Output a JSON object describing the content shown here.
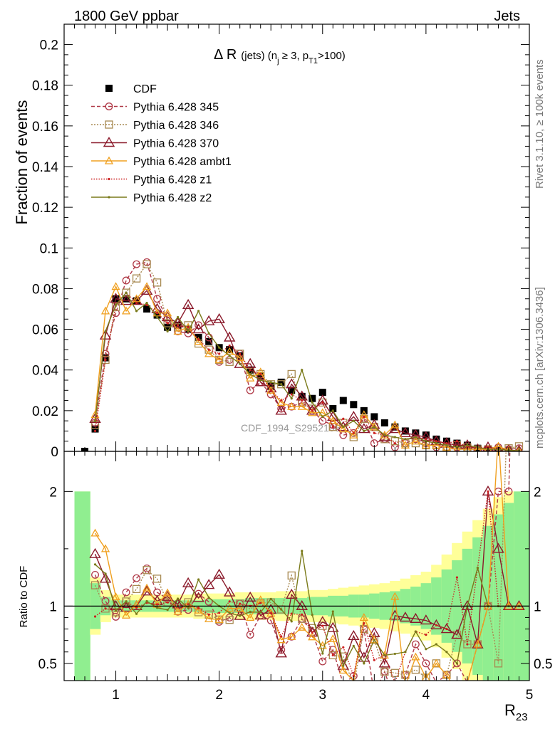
{
  "header": {
    "left": "1800 GeV ppbar",
    "right": "Jets"
  },
  "side_labels": {
    "rivet": "Rivet 3.1.10, ≥ 100k events",
    "mcplots": "mcplots.cern.ch [arXiv:1306.3436]"
  },
  "chart_data": [
    {
      "type": "line",
      "title": "Δ R (jets) (n_j ≥ 3, p_T1>100)",
      "title_parts": {
        "main": "Δ R",
        "pre": "(jets) (n",
        "sub_j": "j",
        "mid": " ≥ 3, p",
        "sub_t": "T1",
        "post": ">100)"
      },
      "ylabel": "Fraction of events",
      "xlabel": "R23",
      "xlabel_parts": {
        "base": "R",
        "sub": "23"
      },
      "watermark": "CDF_1994_S2952106",
      "xlim": [
        0.5,
        5.0
      ],
      "ylim": [
        0,
        0.21
      ],
      "yticks": [
        0,
        0.02,
        0.04,
        0.06,
        0.08,
        0.1,
        0.12,
        0.14,
        0.16,
        0.18,
        0.2
      ],
      "ytick_labels": [
        "0",
        "0.02",
        "0.04",
        "0.06",
        "0.08",
        "0.1",
        "0.12",
        "0.14",
        "0.16",
        "0.18",
        "0.2"
      ],
      "legend_position": "top-left",
      "x": [
        0.7,
        0.8,
        0.9,
        1.0,
        1.1,
        1.2,
        1.3,
        1.4,
        1.5,
        1.6,
        1.7,
        1.8,
        1.9,
        2.0,
        2.1,
        2.2,
        2.3,
        2.4,
        2.5,
        2.6,
        2.7,
        2.8,
        2.9,
        3.0,
        3.1,
        3.2,
        3.3,
        3.4,
        3.5,
        3.6,
        3.7,
        3.8,
        3.9,
        4.0,
        4.1,
        4.2,
        4.3,
        4.4,
        4.5,
        4.6,
        4.7,
        4.8,
        4.9
      ],
      "series": [
        {
          "name": "CDF",
          "color": "#000000",
          "dash": "",
          "marker": "filled-square",
          "values": [
            0.0,
            0.011,
            0.046,
            0.075,
            0.075,
            0.074,
            0.07,
            0.067,
            0.061,
            0.062,
            0.06,
            0.056,
            0.054,
            0.051,
            0.05,
            0.047,
            0.04,
            0.037,
            0.032,
            0.034,
            0.03,
            0.027,
            0.026,
            0.029,
            0.021,
            0.025,
            0.023,
            0.02,
            0.017,
            0.014,
            0.012,
            0.01,
            0.009,
            0.008,
            0.006,
            0.005,
            0.004,
            0.003,
            0.0015,
            0.001,
            0.001,
            0.0005,
            0.0003
          ]
        },
        {
          "name": "Pythia 6.428 345",
          "color": "#b03a48",
          "dash": "5,3",
          "marker": "open-circle",
          "values": [
            null,
            0.014,
            0.048,
            0.068,
            0.084,
            0.092,
            0.093,
            0.075,
            0.065,
            0.059,
            0.058,
            0.062,
            0.056,
            0.044,
            0.045,
            0.048,
            0.03,
            0.034,
            0.028,
            0.021,
            0.022,
            0.024,
            0.02,
            0.015,
            0.013,
            0.008,
            0.009,
            0.016,
            0.004,
            0.006,
            0.002,
            0.004,
            0.006,
            0.004,
            0.002,
            0.002,
            0.002,
            0.001,
            0.001,
            0.001,
            0.002,
            0.001,
            0.0015
          ]
        },
        {
          "name": "Pythia 6.428 346",
          "color": "#a88a52",
          "dash": "2,2",
          "marker": "open-square",
          "values": [
            null,
            0.013,
            0.045,
            0.071,
            0.078,
            0.085,
            0.092,
            0.083,
            0.063,
            0.061,
            0.062,
            0.053,
            0.05,
            0.045,
            0.044,
            0.048,
            0.039,
            0.038,
            0.033,
            0.033,
            0.038,
            0.024,
            0.021,
            0.024,
            0.012,
            0.014,
            0.007,
            0.016,
            0.012,
            0.006,
            0.005,
            0.004,
            0.004,
            0.003,
            0.003,
            0.002,
            0.003,
            0.002,
            0.001,
            0.001,
            0.0005,
            0.0015,
            0.0025
          ]
        },
        {
          "name": "Pythia 6.428 370",
          "color": "#8b1a2b",
          "dash": "",
          "marker": "open-triangle",
          "values": [
            null,
            0.016,
            0.057,
            0.075,
            0.074,
            0.074,
            0.079,
            0.07,
            0.066,
            0.063,
            0.072,
            0.06,
            0.064,
            0.065,
            0.056,
            0.043,
            0.043,
            0.034,
            0.031,
            0.02,
            0.033,
            0.027,
            0.02,
            0.025,
            0.017,
            0.012,
            0.017,
            0.011,
            0.013,
            0.007,
            0.011,
            0.009,
            0.008,
            0.007,
            0.005,
            0.004,
            0.003,
            0.003,
            0.001,
            0.002,
            0.0015,
            0.0005,
            0.0003
          ]
        },
        {
          "name": "Pythia 6.428 ambt1",
          "color": "#f0a020",
          "dash": "",
          "marker": "open-triangle-small",
          "values": [
            null,
            0.018,
            0.069,
            0.081,
            0.069,
            0.075,
            0.081,
            0.068,
            0.068,
            0.059,
            0.061,
            0.054,
            0.048,
            0.045,
            0.049,
            0.046,
            0.036,
            0.039,
            0.03,
            0.024,
            0.022,
            0.022,
            0.019,
            0.019,
            0.015,
            0.011,
            0.008,
            0.018,
            0.012,
            0.008,
            0.013,
            0.003,
            0.005,
            0.003,
            0.003,
            0.002,
            0.001,
            0.001,
            0.001,
            0.001,
            0.0025,
            0.0005,
            0.0003
          ]
        },
        {
          "name": "Pythia 6.428 z1",
          "color": "#cc2020",
          "dash": "1.5,2",
          "marker": "dot",
          "values": [
            null,
            0.01,
            0.045,
            0.072,
            0.078,
            0.073,
            0.072,
            0.068,
            0.063,
            0.062,
            0.061,
            0.055,
            0.05,
            0.048,
            0.052,
            0.048,
            0.04,
            0.038,
            0.03,
            0.025,
            0.028,
            0.025,
            0.02,
            0.024,
            0.012,
            0.016,
            0.009,
            0.017,
            0.009,
            0.008,
            0.004,
            0.006,
            0.007,
            0.006,
            0.005,
            0.004,
            0.005,
            0.002,
            0.002,
            0.002,
            0.001,
            0.0005,
            0.0003
          ]
        },
        {
          "name": "Pythia 6.428 z2",
          "color": "#7a7a1a",
          "dash": "",
          "marker": "dot",
          "values": [
            null,
            0.015,
            0.059,
            0.072,
            0.078,
            0.069,
            0.073,
            0.066,
            0.059,
            0.066,
            0.059,
            0.069,
            0.058,
            0.051,
            0.047,
            0.043,
            0.038,
            0.035,
            0.034,
            0.033,
            0.026,
            0.04,
            0.024,
            0.017,
            0.02,
            0.012,
            0.015,
            0.01,
            0.012,
            0.008,
            0.007,
            0.006,
            0.007,
            0.005,
            0.004,
            0.003,
            0.002,
            0.003,
            0.002,
            0.001,
            0.001,
            0.0005,
            0.0003
          ]
        }
      ]
    },
    {
      "type": "line",
      "ylabel": "Ratio to CDF",
      "xlabel": "R23",
      "xlim": [
        0.5,
        5.0
      ],
      "ylim": [
        0.35,
        2.35
      ],
      "yticks": [
        0.5,
        1,
        2
      ],
      "ytick_labels": [
        "0.5",
        "1",
        "2"
      ],
      "xticks": [
        1,
        2,
        3,
        4,
        5
      ],
      "xtick_labels": [
        "1",
        "2",
        "3",
        "4",
        "5"
      ],
      "band_edges": [
        0.6,
        0.75,
        0.85,
        0.95,
        1.05,
        1.15,
        1.25,
        1.35,
        1.45,
        1.55,
        1.65,
        1.75,
        1.85,
        1.95,
        2.05,
        2.15,
        2.25,
        2.35,
        2.45,
        2.55,
        2.65,
        2.75,
        2.85,
        2.95,
        3.05,
        3.15,
        3.25,
        3.35,
        3.45,
        3.55,
        3.65,
        3.75,
        3.85,
        3.95,
        4.05,
        4.15,
        4.25,
        4.35,
        4.45,
        4.55,
        4.65,
        4.75,
        4.85,
        5.0
      ],
      "band_stat": [
        1.0,
        0.2,
        0.08,
        0.05,
        0.05,
        0.05,
        0.05,
        0.05,
        0.05,
        0.05,
        0.05,
        0.05,
        0.06,
        0.06,
        0.06,
        0.06,
        0.07,
        0.07,
        0.07,
        0.07,
        0.07,
        0.07,
        0.08,
        0.08,
        0.09,
        0.09,
        0.1,
        0.1,
        0.11,
        0.12,
        0.13,
        0.15,
        0.17,
        0.2,
        0.25,
        0.32,
        0.4,
        0.5,
        0.6,
        0.7,
        0.8,
        0.9,
        1.0
      ],
      "band_total": [
        1.0,
        0.25,
        0.14,
        0.1,
        0.1,
        0.1,
        0.1,
        0.1,
        0.1,
        0.1,
        0.1,
        0.11,
        0.11,
        0.11,
        0.11,
        0.12,
        0.12,
        0.12,
        0.12,
        0.13,
        0.13,
        0.13,
        0.14,
        0.14,
        0.15,
        0.16,
        0.17,
        0.18,
        0.19,
        0.2,
        0.22,
        0.24,
        0.27,
        0.3,
        0.36,
        0.45,
        0.55,
        0.65,
        0.75,
        0.85,
        0.95,
        1.0,
        1.0
      ]
    }
  ]
}
